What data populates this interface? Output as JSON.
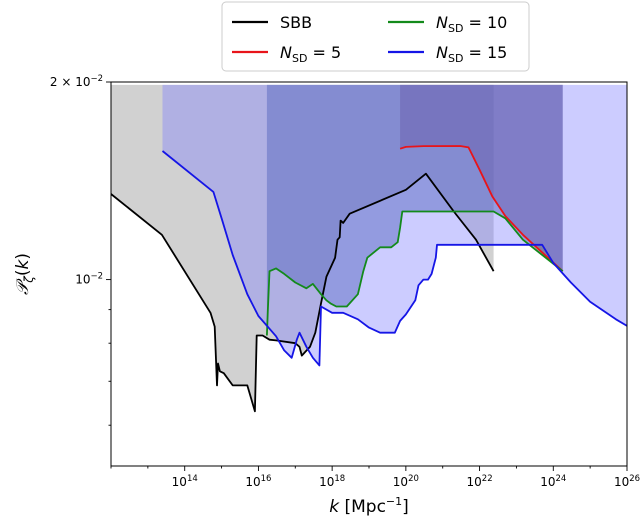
{
  "chart_data": {
    "type": "line",
    "xlabel": "k [Mpc^-1]",
    "ylabel": "P_ζ(k)",
    "xscale": "log",
    "yscale": "log",
    "xlim": [
      1000000000000.0,
      1e+26
    ],
    "ylim": [
      0.0052,
      0.02
    ],
    "x_ticks": [
      100000000000000.0,
      1e+16,
      1e+18,
      1e+20,
      1e+22,
      1e+24,
      1e+26
    ],
    "x_tick_labels": [
      {
        "base": "10",
        "exp": "14"
      },
      {
        "base": "10",
        "exp": "16"
      },
      {
        "base": "10",
        "exp": "18"
      },
      {
        "base": "10",
        "exp": "20"
      },
      {
        "base": "10",
        "exp": "22"
      },
      {
        "base": "10",
        "exp": "24"
      },
      {
        "base": "10",
        "exp": "26"
      }
    ],
    "y_ticks": [
      {
        "value": 0.02,
        "mant": "2 × 10",
        "exp": "−2"
      },
      {
        "value": 0.01,
        "mant": "10",
        "exp": "−2"
      }
    ],
    "legend": {
      "location": "above-plot",
      "columns": 2
    },
    "series": [
      {
        "name": "SBB",
        "label": {
          "main": "SBB"
        },
        "color": "#000000",
        "fill": "#999999",
        "fill_opacity": 0.45,
        "points": [
          [
            1000000000000.0,
            0.0135
          ],
          [
            24000000000000.0,
            0.0117
          ],
          [
            500000000000000.0,
            0.0089
          ],
          [
            650000000000000.0,
            0.00848
          ],
          [
            750000000000000.0,
            0.0069
          ],
          [
            800000000000000.0,
            0.00745
          ],
          [
            900000000000000.0,
            0.00725
          ],
          [
            1150000000000000.0,
            0.0072
          ],
          [
            2000000000000000.0,
            0.0069
          ],
          [
            5000000000000000.0,
            0.0069
          ],
          [
            8000000000000000.0,
            0.0063
          ],
          [
            9000000000000000.0,
            0.00822
          ],
          [
            1.3e+16,
            0.00822
          ],
          [
            2e+16,
            0.0081
          ],
          [
            3e+16,
            0.00808
          ],
          [
            1e+17,
            0.008
          ],
          [
            1.3e+17,
            0.0079
          ],
          [
            1.5e+17,
            0.00766
          ],
          [
            2.5e+17,
            0.0079
          ],
          [
            3.5e+17,
            0.0083
          ],
          [
            5e+17,
            0.0092
          ],
          [
            7e+17,
            0.0101
          ],
          [
            1.2e+18,
            0.0108
          ],
          [
            1.4e+18,
            0.0115
          ],
          [
            1.6e+18,
            0.0116
          ],
          [
            1.7e+18,
            0.0123
          ],
          [
            2e+18,
            0.0122
          ],
          [
            3e+18,
            0.0126
          ],
          [
            1e+20,
            0.0137
          ],
          [
            3.5e+20,
            0.0145
          ],
          [
            2e+21,
            0.0127
          ],
          [
            8e+21,
            0.0115
          ],
          [
            2.4e+22,
            0.0103
          ]
        ],
        "lower": [
          [
            1000000000000.0,
            0.0198
          ],
          [
            2.4e+22,
            0.0198
          ]
        ]
      },
      {
        "name": "N_SD = 5",
        "label": {
          "main": "N",
          "sub": "SD",
          "suffix": " = 5"
        },
        "color": "#e8141a",
        "fill": "#7a3a5a",
        "fill_opacity": 0.45,
        "points": [
          [
            7e+19,
            0.01583
          ],
          [
            1e+20,
            0.01593
          ],
          [
            3e+20,
            0.01597
          ],
          [
            3e+21,
            0.01598
          ],
          [
            5e+21,
            0.0159
          ],
          [
            1e+22,
            0.0147
          ],
          [
            2.2e+22,
            0.0134
          ],
          [
            5e+22,
            0.0125
          ],
          [
            1.5e+23,
            0.0117
          ],
          [
            1.8e+24,
            0.0103
          ]
        ],
        "lower": [
          [
            7e+19,
            0.0198
          ],
          [
            1.8e+24,
            0.0198
          ]
        ]
      },
      {
        "name": "N_SD = 10",
        "label": {
          "main": "N",
          "sub": "SD",
          "suffix": " = 10"
        },
        "color": "#138a1b",
        "fill": "#2e4a8c",
        "fill_opacity": 0.45,
        "points": [
          [
            1.7e+16,
            0.00822
          ],
          [
            1.8e+16,
            0.00895
          ],
          [
            2e+16,
            0.0103
          ],
          [
            3e+16,
            0.0104
          ],
          [
            5e+16,
            0.0102
          ],
          [
            1e+17,
            0.0099
          ],
          [
            2e+17,
            0.0097
          ],
          [
            3e+17,
            0.00985
          ],
          [
            5e+17,
            0.0095
          ],
          [
            7e+17,
            0.0093
          ],
          [
            9e+17,
            0.0092
          ],
          [
            1.3e+18,
            0.0091
          ],
          [
            2.5e+18,
            0.0091
          ],
          [
            5e+18,
            0.0095
          ],
          [
            7e+18,
            0.0103
          ],
          [
            9e+18,
            0.0108
          ],
          [
            2e+19,
            0.0112
          ],
          [
            4e+19,
            0.0112
          ],
          [
            6e+19,
            0.0114
          ],
          [
            7e+19,
            0.012
          ],
          [
            8e+19,
            0.0127
          ],
          [
            5e+20,
            0.0127
          ],
          [
            2.4e+22,
            0.0127
          ],
          [
            5e+22,
            0.0124
          ],
          [
            1.5e+23,
            0.0115
          ],
          [
            1.8e+24,
            0.0103
          ]
        ],
        "lower": [
          [
            1.7e+16,
            0.0198
          ],
          [
            1.8e+24,
            0.0198
          ]
        ]
      },
      {
        "name": "N_SD = 15",
        "label": {
          "main": "N",
          "sub": "SD",
          "suffix": " = 15"
        },
        "color": "#1515e6",
        "fill": "#8080ff",
        "fill_opacity": 0.4,
        "points": [
          [
            25000000000000.0,
            0.0157
          ],
          [
            600000000000000.0,
            0.0136
          ],
          [
            1000000000000000.0,
            0.0124
          ],
          [
            2000000000000000.0,
            0.0109
          ],
          [
            5000000000000000.0,
            0.0095
          ],
          [
            1e+16,
            0.0088
          ],
          [
            3e+16,
            0.0082
          ],
          [
            5e+16,
            0.0078
          ],
          [
            8e+16,
            0.0076
          ],
          [
            1.1e+17,
            0.0081
          ],
          [
            1.3e+17,
            0.0083
          ],
          [
            2e+17,
            0.0079
          ],
          [
            3e+17,
            0.0076
          ],
          [
            4.5e+17,
            0.0074
          ],
          [
            5e+17,
            0.0091
          ],
          [
            1e+18,
            0.0089
          ],
          [
            2e+18,
            0.0089
          ],
          [
            5e+18,
            0.0087
          ],
          [
            1e+19,
            0.00845
          ],
          [
            2e+19,
            0.0083
          ],
          [
            5e+19,
            0.0083
          ],
          [
            7e+19,
            0.00865
          ],
          [
            1e+20,
            0.00885
          ],
          [
            1.8e+20,
            0.0093
          ],
          [
            2.2e+20,
            0.0098
          ],
          [
            3e+20,
            0.01
          ],
          [
            4e+20,
            0.01
          ],
          [
            5e+20,
            0.0102
          ],
          [
            6.5e+20,
            0.0108
          ],
          [
            7e+20,
            0.0113
          ],
          [
            1e+21,
            0.0113
          ],
          [
            3e+22,
            0.0113
          ],
          [
            5e+23,
            0.0113
          ],
          [
            1e+24,
            0.0106
          ],
          [
            3e+24,
            0.0099
          ],
          [
            1e+25,
            0.00925
          ],
          [
            5e+25,
            0.0087
          ],
          [
            1e+26,
            0.0085
          ]
        ],
        "lower": [
          [
            25000000000000.0,
            0.0198
          ],
          [
            1e+26,
            0.0198
          ]
        ]
      }
    ]
  }
}
